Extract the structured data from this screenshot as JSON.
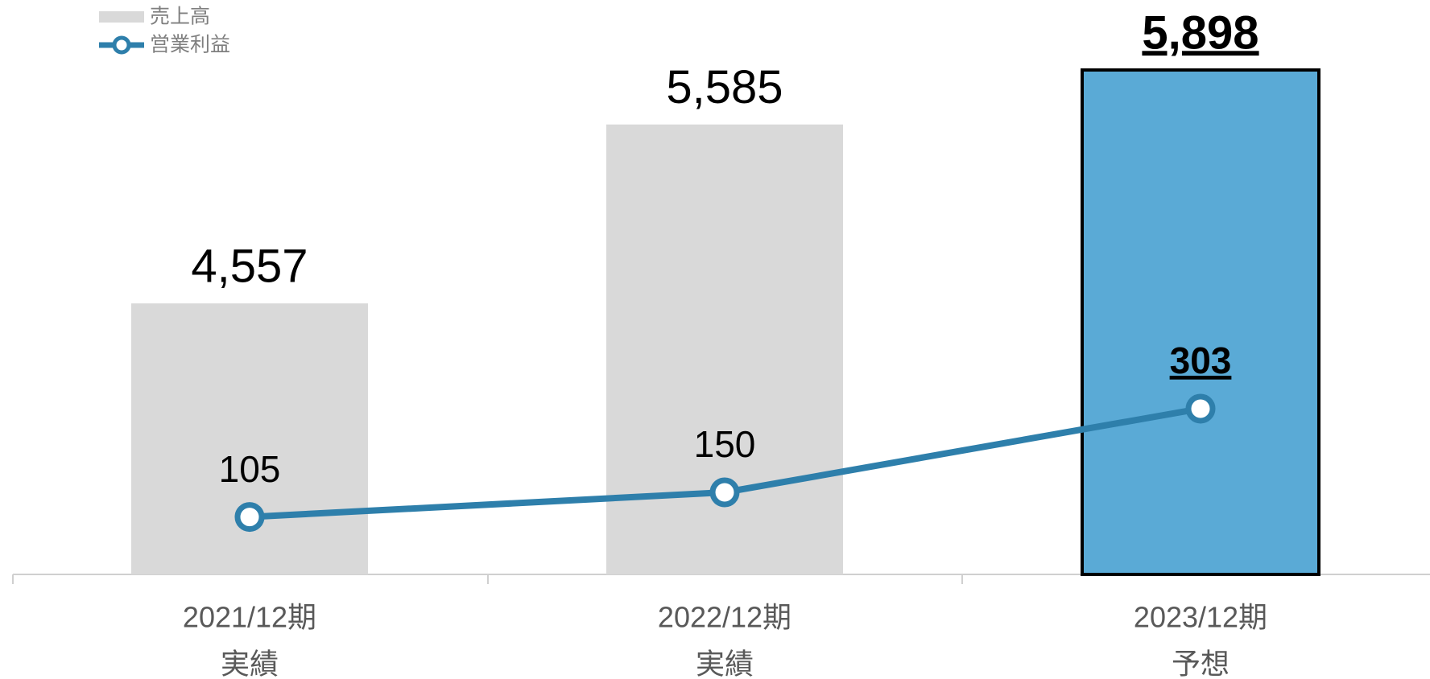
{
  "chart_data": {
    "type": "bar_line",
    "categories": [
      "2021/12期",
      "2022/12期",
      "2023/12期"
    ],
    "category_sublabels": [
      "実績",
      "実績",
      "予想"
    ],
    "series": [
      {
        "name": "売上高",
        "type": "bar",
        "color": "#d9d9d9",
        "colors": [
          "#d9d9d9",
          "#d9d9d9",
          "#5aaad6"
        ],
        "values": [
          4557,
          5585,
          5898
        ],
        "value_labels": [
          "4,557",
          "5,585",
          "5,898"
        ]
      },
      {
        "name": "営業利益",
        "type": "line",
        "axis": "y2",
        "color": "#2e7fab",
        "values": [
          105,
          150,
          303
        ],
        "value_labels": [
          "105",
          "150",
          "303"
        ]
      }
    ],
    "emphasized": [
      false,
      false,
      true
    ],
    "ylim": [
      3000,
      6300
    ],
    "y2lim": [
      0,
      1050
    ]
  }
}
